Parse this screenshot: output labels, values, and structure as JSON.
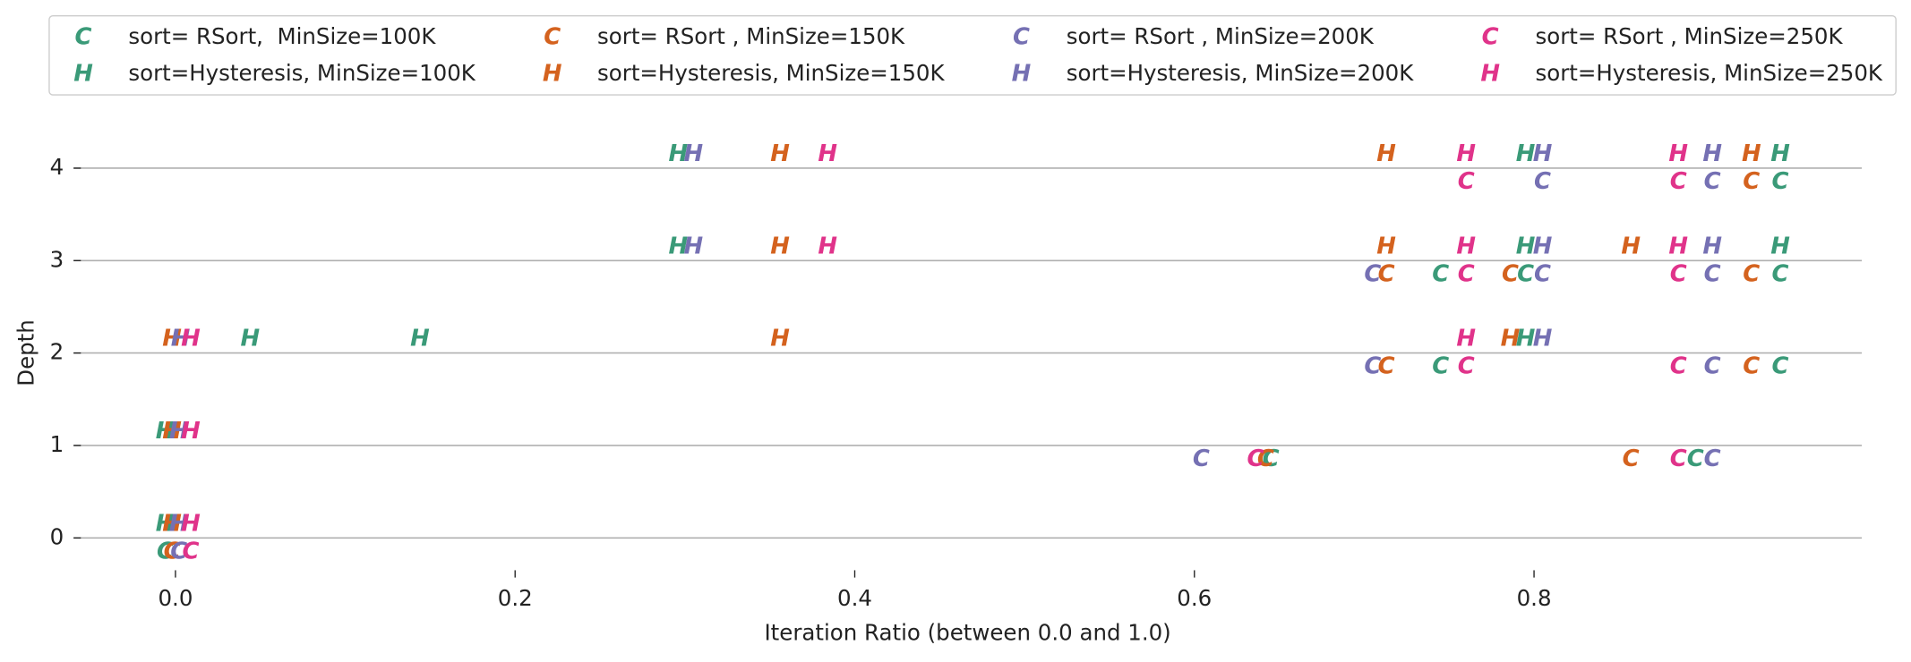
{
  "chart_data": {
    "type": "scatter",
    "x_label": "Iteration Ratio (between 0.0 and 1.0)",
    "y_label": "Depth",
    "xlim": [
      -0.06,
      0.993
    ],
    "ylim": [
      -0.35,
      4.45
    ],
    "xticks": [
      {
        "value": 0,
        "label": "0.0"
      },
      {
        "value": 0.2,
        "label": "0.2"
      },
      {
        "value": 0.4,
        "label": "0.4"
      },
      {
        "value": 0.6,
        "label": "0.6"
      },
      {
        "value": 0.8,
        "label": "0.8"
      }
    ],
    "yticks": [
      0,
      1,
      2,
      3,
      4
    ],
    "grid": true,
    "legend": "top",
    "series": [
      {
        "name": "sort= RSort,  MinSize=100K",
        "marker": "C",
        "color": "#3a9a78",
        "x": [
          -0.006,
          0.645,
          0.895,
          0.745,
          0.945,
          0.745,
          0.795,
          0.945,
          0.945
        ],
        "y": [
          -0.15,
          0.85,
          0.85,
          1.85,
          1.85,
          2.85,
          2.85,
          2.85,
          3.85
        ]
      },
      {
        "name": "sort=Hysteresis, MinSize=100K",
        "marker": "H",
        "color": "#3a9a78",
        "x": [
          -0.006,
          -0.006,
          0.044,
          0.144,
          0.795,
          0.296,
          0.795,
          0.945,
          0.296,
          0.795,
          0.945
        ],
        "y": [
          0.15,
          1.15,
          2.15,
          2.15,
          2.15,
          3.15,
          3.15,
          3.15,
          4.15,
          4.15,
          4.15
        ]
      },
      {
        "name": "sort= RSort , MinSize=150K",
        "marker": "C",
        "color": "#d4621e",
        "x": [
          -0.002,
          0.642,
          0.857,
          0.713,
          0.928,
          0.713,
          0.786,
          0.928,
          0.928
        ],
        "y": [
          -0.15,
          0.85,
          0.85,
          1.85,
          1.85,
          2.85,
          2.85,
          2.85,
          3.85
        ]
      },
      {
        "name": "sort=Hysteresis, MinSize=150K",
        "marker": "H",
        "color": "#d4621e",
        "x": [
          -0.002,
          -0.002,
          -0.002,
          0.356,
          0.786,
          0.356,
          0.713,
          0.857,
          0.356,
          0.713,
          0.928
        ],
        "y": [
          0.15,
          1.15,
          2.15,
          2.15,
          2.15,
          3.15,
          3.15,
          3.15,
          4.15,
          4.15,
          4.15
        ]
      },
      {
        "name": "sort= RSort , MinSize=200K",
        "marker": "C",
        "color": "#7570b3",
        "x": [
          0.002,
          0.604,
          0.905,
          0.705,
          0.905,
          0.705,
          0.805,
          0.905,
          0.805,
          0.905
        ],
        "y": [
          -0.15,
          0.85,
          0.85,
          1.85,
          1.85,
          2.85,
          2.85,
          2.85,
          3.85,
          3.85
        ]
      },
      {
        "name": "sort=Hysteresis, MinSize=200K",
        "marker": "H",
        "color": "#7570b3",
        "x": [
          0.002,
          0.002,
          0.003,
          0.805,
          0.305,
          0.805,
          0.905,
          0.305,
          0.805,
          0.905
        ],
        "y": [
          0.15,
          1.15,
          2.15,
          2.15,
          3.15,
          3.15,
          3.15,
          4.15,
          4.15,
          4.15
        ]
      },
      {
        "name": "sort= RSort , MinSize=250K",
        "marker": "C",
        "color": "#e0338a",
        "x": [
          0.009,
          0.636,
          0.885,
          0.76,
          0.885,
          0.76,
          0.885,
          0.76,
          0.885
        ],
        "y": [
          -0.15,
          0.85,
          0.85,
          1.85,
          1.85,
          2.85,
          2.85,
          3.85,
          3.85
        ]
      },
      {
        "name": "sort=Hysteresis, MinSize=250K",
        "marker": "H",
        "color": "#e0338a",
        "x": [
          0.009,
          0.009,
          0.009,
          0.76,
          0.384,
          0.76,
          0.885,
          0.384,
          0.76,
          0.885
        ],
        "y": [
          0.15,
          1.15,
          2.15,
          2.15,
          3.15,
          3.15,
          3.15,
          4.15,
          4.15,
          4.15
        ]
      }
    ]
  }
}
